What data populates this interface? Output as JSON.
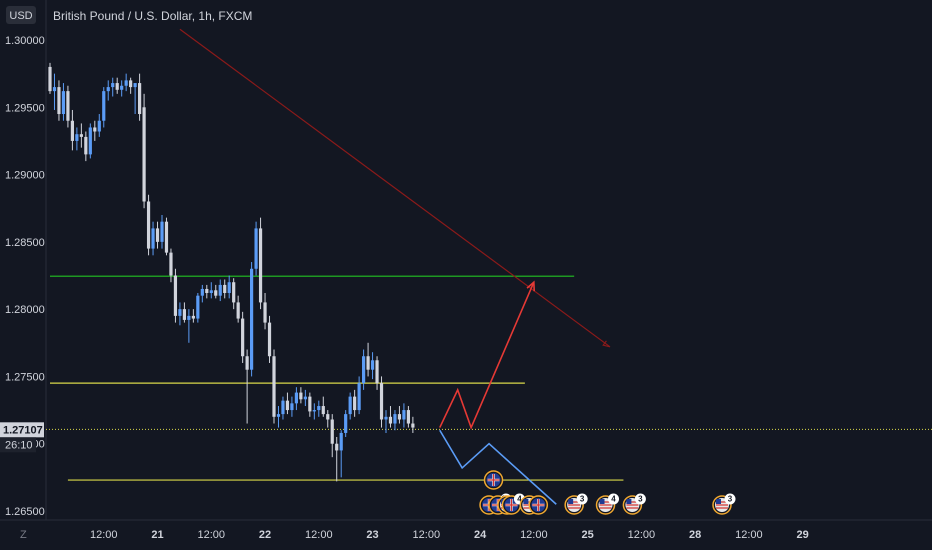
{
  "header": {
    "currency": "USD",
    "title": "British Pound / U.S. Dollar, 1h, FXCM"
  },
  "side": {
    "countdown": "26:10",
    "current_price_label": "1.27107",
    "zoom_label": "Z"
  },
  "colors": {
    "background": "#131722",
    "up_candle": "#5b9cf6",
    "down_candle": "#d1d4dc",
    "green_level": "#22c322",
    "yellow_level": "#d9d94a",
    "downtrend": "#8b1a1a",
    "projection_up": "#e53935",
    "projection_down": "#5b9cf6",
    "price_line": "#d9d94a"
  },
  "chart_data": {
    "type": "candlestick",
    "title": "British Pound / U.S. Dollar, 1h, FXCM",
    "ylim": [
      1.2635,
      1.3005
    ],
    "y_ticks": [
      "1.26500",
      "1.27000",
      "1.27500",
      "1.28000",
      "1.28500",
      "1.29000",
      "1.29500",
      "1.30000"
    ],
    "x_ticks": [
      {
        "label": "12:00",
        "x": 12,
        "bold": false
      },
      {
        "label": "21",
        "x": 24,
        "bold": true
      },
      {
        "label": "12:00",
        "x": 36,
        "bold": false
      },
      {
        "label": "22",
        "x": 48,
        "bold": true
      },
      {
        "label": "12:00",
        "x": 60,
        "bold": false
      },
      {
        "label": "23",
        "x": 72,
        "bold": true
      },
      {
        "label": "12:00",
        "x": 84,
        "bold": false
      },
      {
        "label": "24",
        "x": 96,
        "bold": true
      },
      {
        "label": "12:00",
        "x": 108,
        "bold": false
      },
      {
        "label": "25",
        "x": 120,
        "bold": true
      },
      {
        "label": "12:00",
        "x": 132,
        "bold": false
      },
      {
        "label": "28",
        "x": 144,
        "bold": true
      },
      {
        "label": "12:00",
        "x": 156,
        "bold": false
      },
      {
        "label": "29",
        "x": 168,
        "bold": true
      }
    ],
    "current_price": 1.27107,
    "candles": [
      [
        1.298,
        1.2983,
        1.296,
        1.2962
      ],
      [
        1.2962,
        1.2975,
        1.2948,
        1.2965
      ],
      [
        1.2965,
        1.297,
        1.294,
        1.2945
      ],
      [
        1.2945,
        1.2968,
        1.294,
        1.2962
      ],
      [
        1.2962,
        1.2966,
        1.2935,
        1.294
      ],
      [
        1.294,
        1.2948,
        1.2918,
        1.2925
      ],
      [
        1.2925,
        1.2935,
        1.2918,
        1.293
      ],
      [
        1.293,
        1.2938,
        1.292,
        1.2928
      ],
      [
        1.2928,
        1.2932,
        1.291,
        1.2915
      ],
      [
        1.2915,
        1.2938,
        1.2912,
        1.2935
      ],
      [
        1.2935,
        1.294,
        1.2925,
        1.2932
      ],
      [
        1.2932,
        1.2945,
        1.2928,
        1.294
      ],
      [
        1.294,
        1.2965,
        1.2935,
        1.2962
      ],
      [
        1.2962,
        1.297,
        1.2955,
        1.2965
      ],
      [
        1.2965,
        1.2972,
        1.2958,
        1.2968
      ],
      [
        1.2968,
        1.2972,
        1.296,
        1.2963
      ],
      [
        1.2963,
        1.297,
        1.2958,
        1.2966
      ],
      [
        1.2966,
        1.2975,
        1.2962,
        1.297
      ],
      [
        1.297,
        1.2972,
        1.296,
        1.2965
      ],
      [
        1.2965,
        1.2968,
        1.2945,
        1.2968
      ],
      [
        1.2968,
        1.2975,
        1.294,
        1.2945
      ],
      [
        1.295,
        1.296,
        1.2875,
        1.288
      ],
      [
        1.288,
        1.2885,
        1.284,
        1.2845
      ],
      [
        1.2845,
        1.2865,
        1.284,
        1.286
      ],
      [
        1.286,
        1.2865,
        1.2845,
        1.285
      ],
      [
        1.285,
        1.287,
        1.2845,
        1.2865
      ],
      [
        1.2865,
        1.2868,
        1.284,
        1.2842
      ],
      [
        1.2842,
        1.2845,
        1.282,
        1.2825
      ],
      [
        1.2825,
        1.283,
        1.279,
        1.2795
      ],
      [
        1.2795,
        1.2805,
        1.2788,
        1.28
      ],
      [
        1.28,
        1.2805,
        1.279,
        1.2792
      ],
      [
        1.2792,
        1.28,
        1.2775,
        1.2795
      ],
      [
        1.2795,
        1.28,
        1.279,
        1.2793
      ],
      [
        1.2793,
        1.2812,
        1.279,
        1.281
      ],
      [
        1.281,
        1.2818,
        1.2805,
        1.2815
      ],
      [
        1.2815,
        1.2818,
        1.2808,
        1.2812
      ],
      [
        1.2812,
        1.282,
        1.2808,
        1.2814
      ],
      [
        1.2814,
        1.2818,
        1.2808,
        1.281
      ],
      [
        1.281,
        1.2822,
        1.2806,
        1.2818
      ],
      [
        1.2818,
        1.2822,
        1.2808,
        1.2812
      ],
      [
        1.2812,
        1.2825,
        1.2808,
        1.282
      ],
      [
        1.282,
        1.2823,
        1.28,
        1.2805
      ],
      [
        1.2805,
        1.281,
        1.279,
        1.2793
      ],
      [
        1.2793,
        1.2798,
        1.276,
        1.2765
      ],
      [
        1.2765,
        1.277,
        1.2715,
        1.2755
      ],
      [
        1.2755,
        1.2835,
        1.275,
        1.283
      ],
      [
        1.283,
        1.2865,
        1.2825,
        1.286
      ],
      [
        1.286,
        1.2868,
        1.28,
        1.2805
      ],
      [
        1.2805,
        1.2812,
        1.2785,
        1.279
      ],
      [
        1.279,
        1.2795,
        1.276,
        1.2765
      ],
      [
        1.2765,
        1.277,
        1.2715,
        1.272
      ],
      [
        1.272,
        1.2728,
        1.2712,
        1.2722
      ],
      [
        1.2722,
        1.2735,
        1.2718,
        1.2732
      ],
      [
        1.2732,
        1.2738,
        1.2722,
        1.2725
      ],
      [
        1.2725,
        1.2735,
        1.272,
        1.273
      ],
      [
        1.273,
        1.2742,
        1.2725,
        1.2738
      ],
      [
        1.2738,
        1.2742,
        1.273,
        1.2733
      ],
      [
        1.2733,
        1.274,
        1.2728,
        1.2735
      ],
      [
        1.2735,
        1.2738,
        1.272,
        1.2724
      ],
      [
        1.2724,
        1.273,
        1.2718,
        1.2725
      ],
      [
        1.2725,
        1.2732,
        1.272,
        1.2728
      ],
      [
        1.2728,
        1.2735,
        1.272,
        1.2722
      ],
      [
        1.2722,
        1.2725,
        1.2712,
        1.2718
      ],
      [
        1.2718,
        1.2722,
        1.269,
        1.27
      ],
      [
        1.27,
        1.2705,
        1.2672,
        1.2695
      ],
      [
        1.2695,
        1.271,
        1.2675,
        1.2708
      ],
      [
        1.2708,
        1.2725,
        1.2705,
        1.2722
      ],
      [
        1.2722,
        1.2738,
        1.2718,
        1.2735
      ],
      [
        1.2735,
        1.274,
        1.272,
        1.2725
      ],
      [
        1.2725,
        1.275,
        1.2722,
        1.2745
      ],
      [
        1.2745,
        1.277,
        1.274,
        1.2765
      ],
      [
        1.2765,
        1.2775,
        1.275,
        1.2755
      ],
      [
        1.2755,
        1.2768,
        1.2748,
        1.2762
      ],
      [
        1.2762,
        1.2765,
        1.274,
        1.2745
      ],
      [
        1.2745,
        1.275,
        1.2712,
        1.2718
      ],
      [
        1.2718,
        1.2725,
        1.2708,
        1.272
      ],
      [
        1.272,
        1.2728,
        1.2712,
        1.2715
      ],
      [
        1.2715,
        1.2725,
        1.271,
        1.2722
      ],
      [
        1.2722,
        1.2728,
        1.2715,
        1.2718
      ],
      [
        1.2718,
        1.273,
        1.2712,
        1.2725
      ],
      [
        1.2725,
        1.2728,
        1.2712,
        1.2715
      ],
      [
        1.2715,
        1.272,
        1.2708,
        1.2712
      ]
    ],
    "horizontal_levels": [
      {
        "name": "green",
        "price": 1.28245,
        "x_start": 0,
        "x_end": 117
      },
      {
        "name": "yellow-upper",
        "price": 1.2745,
        "x_start": 0,
        "x_end": 106
      },
      {
        "name": "yellow-lower",
        "price": 1.2673,
        "x_start": 4,
        "x_end": 128
      }
    ],
    "trendline": {
      "x1": 29,
      "y1": 1.3008,
      "x2": 125,
      "y2": 1.2772
    },
    "projection_up": [
      [
        87,
        1.2712
      ],
      [
        91,
        1.274
      ],
      [
        94,
        1.2712
      ],
      [
        108,
        1.282
      ]
    ],
    "projection_down": [
      [
        87,
        1.271
      ],
      [
        92,
        1.2682
      ],
      [
        98,
        1.27
      ],
      [
        113,
        1.2655
      ]
    ],
    "events": [
      {
        "x": 99,
        "row": 2,
        "flag": "uk",
        "badge": ""
      },
      {
        "x": 98,
        "row": 1,
        "flag": "uk",
        "badge": ""
      },
      {
        "x": 100,
        "row": 1,
        "flag": "uk",
        "badge": "29"
      },
      {
        "x": 102,
        "row": 1,
        "flag": "us",
        "badge": ""
      },
      {
        "x": 103,
        "row": 1,
        "flag": "uk",
        "badge": "4"
      },
      {
        "x": 107,
        "row": 1,
        "flag": "us",
        "badge": ""
      },
      {
        "x": 109,
        "row": 1,
        "flag": "uk",
        "badge": ""
      },
      {
        "x": 117,
        "row": 1,
        "flag": "us",
        "badge": "3"
      },
      {
        "x": 124,
        "row": 1,
        "flag": "us",
        "badge": "4"
      },
      {
        "x": 130,
        "row": 1,
        "flag": "us",
        "badge": "3"
      },
      {
        "x": 150,
        "row": 1,
        "flag": "us",
        "badge": "3"
      }
    ]
  }
}
